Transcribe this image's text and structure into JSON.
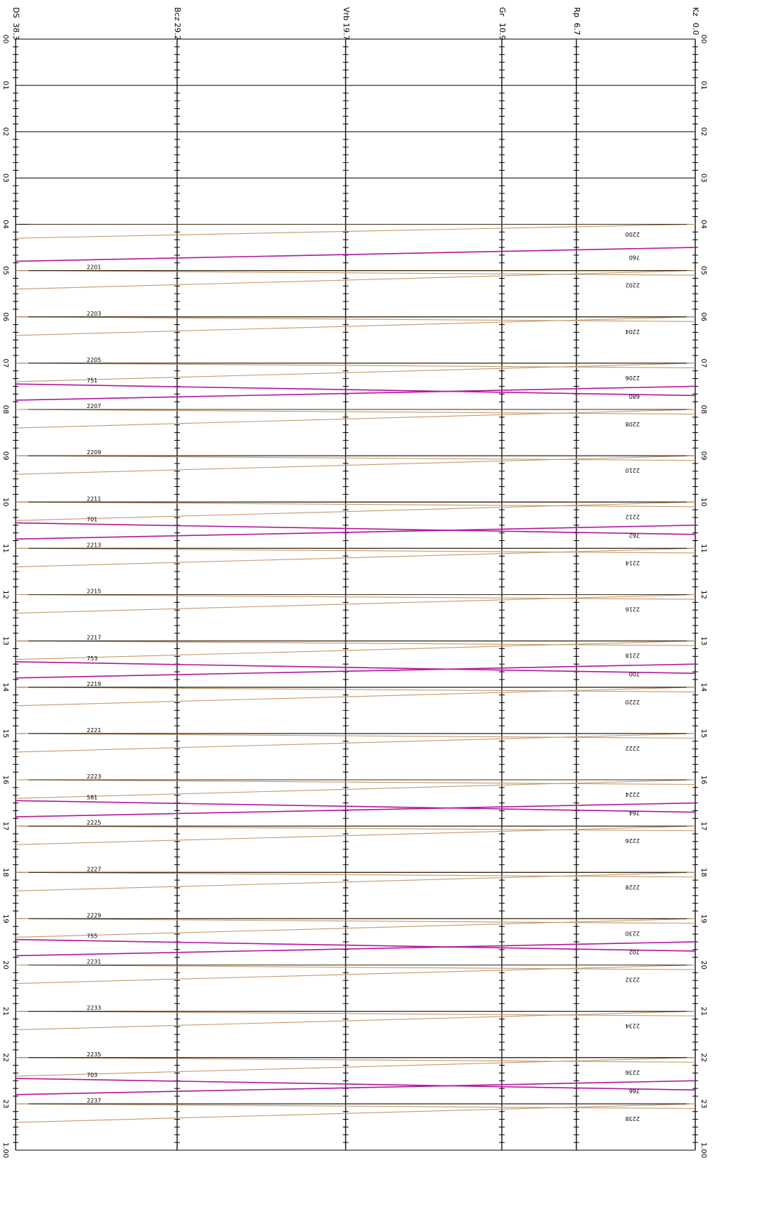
{
  "chart_data": {
    "type": "line",
    "title": "",
    "orientation": "rotated-90",
    "stations": [
      {
        "name": "DS",
        "distance": "38.3"
      },
      {
        "name": "Bcz",
        "distance": "29.2"
      },
      {
        "name": "Vrb",
        "distance": "19.7"
      },
      {
        "name": "Gr",
        "distance": "10.9"
      },
      {
        "name": "Rp",
        "distance": "6.7"
      },
      {
        "name": "Kz",
        "distance": "0.0"
      }
    ],
    "station_positions_km": [
      38.3,
      29.2,
      19.7,
      10.9,
      6.7,
      0.0
    ],
    "time_ticks": [
      "00",
      "01",
      "02",
      "03",
      "04",
      "05",
      "06",
      "07",
      "08",
      "09",
      "10",
      "11",
      "12",
      "13",
      "14",
      "15",
      "16",
      "17",
      "18",
      "19",
      "20",
      "21",
      "22",
      "23",
      "1.00"
    ],
    "time_range_hours": [
      0,
      24
    ],
    "grid": true,
    "series": [
      {
        "label": "2200",
        "color": "#c49a6c",
        "label_side": "right",
        "mark_hours": [
          4.0,
          4.3
        ],
        "start_hour": 4.4
      },
      {
        "label": "760",
        "color": "#b3169e",
        "label_side": "right",
        "mark_hours": [
          4.5,
          4.8
        ],
        "start_hour": 4.8
      },
      {
        "label": "2201",
        "color": "#c49a6c",
        "label_side": "left",
        "mark_hours": [
          5.0,
          5.1
        ],
        "start_hour": 5.0
      },
      {
        "label": "2202",
        "color": "#c49a6c",
        "label_side": "right",
        "mark_hours": [
          5.0,
          5.4
        ],
        "start_hour": 5.4
      },
      {
        "label": "2203",
        "color": "#c49a6c",
        "label_side": "left",
        "mark_hours": [
          6.0,
          6.1
        ],
        "start_hour": 6.0
      },
      {
        "label": "2204",
        "color": "#c49a6c",
        "label_side": "right",
        "mark_hours": [
          6.0,
          6.4
        ],
        "start_hour": 6.4
      },
      {
        "label": "2205",
        "color": "#c49a6c",
        "label_side": "left",
        "mark_hours": [
          7.0,
          7.1
        ],
        "start_hour": 7.0
      },
      {
        "label": "2206",
        "color": "#c49a6c",
        "label_side": "right",
        "mark_hours": [
          7.0,
          7.4
        ],
        "start_hour": 7.4
      },
      {
        "label": "751",
        "color": "#b3169e",
        "label_side": "left",
        "mark_hours": [
          7.45,
          7.7
        ],
        "start_hour": 7.45
      },
      {
        "label": "680",
        "color": "#b3169e",
        "label_side": "right",
        "mark_hours": [
          7.5,
          7.8
        ],
        "start_hour": 7.8
      },
      {
        "label": "2207",
        "color": "#c49a6c",
        "label_side": "left",
        "mark_hours": [
          8.0,
          8.1
        ],
        "start_hour": 8.0
      },
      {
        "label": "2208",
        "color": "#c49a6c",
        "label_side": "right",
        "mark_hours": [
          8.0,
          8.4
        ],
        "start_hour": 8.4
      },
      {
        "label": "2209",
        "color": "#c49a6c",
        "label_side": "left",
        "mark_hours": [
          9.0,
          9.1
        ],
        "start_hour": 9.0
      },
      {
        "label": "2210",
        "color": "#c49a6c",
        "label_side": "right",
        "mark_hours": [
          9.0,
          9.4
        ],
        "start_hour": 9.4
      },
      {
        "label": "2211",
        "color": "#c49a6c",
        "label_side": "left",
        "mark_hours": [
          10.0,
          10.1
        ],
        "start_hour": 10.0
      },
      {
        "label": "2212",
        "color": "#c49a6c",
        "label_side": "right",
        "mark_hours": [
          10.0,
          10.4
        ],
        "start_hour": 10.4
      },
      {
        "label": "701",
        "color": "#b3169e",
        "label_side": "left",
        "mark_hours": [
          10.45,
          10.7
        ],
        "start_hour": 10.45
      },
      {
        "label": "762",
        "color": "#b3169e",
        "label_side": "right",
        "mark_hours": [
          10.5,
          10.8
        ],
        "start_hour": 10.8
      },
      {
        "label": "2213",
        "color": "#c49a6c",
        "label_side": "left",
        "mark_hours": [
          11.0,
          11.1
        ],
        "start_hour": 11.0
      },
      {
        "label": "2214",
        "color": "#c49a6c",
        "label_side": "right",
        "mark_hours": [
          11.0,
          11.4
        ],
        "start_hour": 11.4
      },
      {
        "label": "2215",
        "color": "#c49a6c",
        "label_side": "left",
        "mark_hours": [
          12.0,
          12.1
        ],
        "start_hour": 12.0
      },
      {
        "label": "2216",
        "color": "#c49a6c",
        "label_side": "right",
        "mark_hours": [
          12.0,
          12.4
        ],
        "start_hour": 12.4
      },
      {
        "label": "2217",
        "color": "#c49a6c",
        "label_side": "left",
        "mark_hours": [
          13.0,
          13.1
        ],
        "start_hour": 13.0
      },
      {
        "label": "2218",
        "color": "#c49a6c",
        "label_side": "right",
        "mark_hours": [
          13.0,
          13.4
        ],
        "start_hour": 13.4
      },
      {
        "label": "753",
        "color": "#b3169e",
        "label_side": "left",
        "mark_hours": [
          13.45,
          13.7
        ],
        "start_hour": 13.45
      },
      {
        "label": "700",
        "color": "#b3169e",
        "label_side": "right",
        "mark_hours": [
          13.5,
          13.8
        ],
        "start_hour": 13.8
      },
      {
        "label": "2219",
        "color": "#c49a6c",
        "label_side": "left",
        "mark_hours": [
          14.0,
          14.1
        ],
        "start_hour": 14.0
      },
      {
        "label": "2220",
        "color": "#c49a6c",
        "label_side": "right",
        "mark_hours": [
          14.0,
          14.4
        ],
        "start_hour": 14.4
      },
      {
        "label": "2221",
        "color": "#c49a6c",
        "label_side": "left",
        "mark_hours": [
          15.0,
          15.1
        ],
        "start_hour": 15.0
      },
      {
        "label": "2222",
        "color": "#c49a6c",
        "label_side": "right",
        "mark_hours": [
          15.0,
          15.4
        ],
        "start_hour": 15.4
      },
      {
        "label": "2223",
        "color": "#c49a6c",
        "label_side": "left",
        "mark_hours": [
          16.0,
          16.1
        ],
        "start_hour": 16.0
      },
      {
        "label": "2224",
        "color": "#c49a6c",
        "label_side": "right",
        "mark_hours": [
          16.0,
          16.4
        ],
        "start_hour": 16.4
      },
      {
        "label": "581",
        "color": "#b3169e",
        "label_side": "left",
        "mark_hours": [
          16.45,
          16.7
        ],
        "start_hour": 16.45
      },
      {
        "label": "764",
        "color": "#b3169e",
        "label_side": "right",
        "mark_hours": [
          16.5,
          16.8
        ],
        "start_hour": 16.8
      },
      {
        "label": "2225",
        "color": "#c49a6c",
        "label_side": "left",
        "mark_hours": [
          17.0,
          17.1
        ],
        "start_hour": 17.0
      },
      {
        "label": "2226",
        "color": "#c49a6c",
        "label_side": "right",
        "mark_hours": [
          17.0,
          17.4
        ],
        "start_hour": 17.4
      },
      {
        "label": "2227",
        "color": "#c49a6c",
        "label_side": "left",
        "mark_hours": [
          18.0,
          18.1
        ],
        "start_hour": 18.0
      },
      {
        "label": "2228",
        "color": "#c49a6c",
        "label_side": "right",
        "mark_hours": [
          18.0,
          18.4
        ],
        "start_hour": 18.4
      },
      {
        "label": "2229",
        "color": "#c49a6c",
        "label_side": "left",
        "mark_hours": [
          19.0,
          19.1
        ],
        "start_hour": 19.0
      },
      {
        "label": "2230",
        "color": "#c49a6c",
        "label_side": "right",
        "mark_hours": [
          19.0,
          19.4
        ],
        "start_hour": 19.4
      },
      {
        "label": "755",
        "color": "#b3169e",
        "label_side": "left",
        "mark_hours": [
          19.45,
          19.7
        ],
        "start_hour": 19.45
      },
      {
        "label": "702",
        "color": "#b3169e",
        "label_side": "right",
        "mark_hours": [
          19.5,
          19.8
        ],
        "start_hour": 19.8
      },
      {
        "label": "2231",
        "color": "#c49a6c",
        "label_side": "left",
        "mark_hours": [
          20.0,
          20.1
        ],
        "start_hour": 20.0
      },
      {
        "label": "2232",
        "color": "#c49a6c",
        "label_side": "right",
        "mark_hours": [
          20.0,
          20.4
        ],
        "start_hour": 20.4
      },
      {
        "label": "2233",
        "color": "#c49a6c",
        "label_side": "left",
        "mark_hours": [
          21.0,
          21.1
        ],
        "start_hour": 21.0
      },
      {
        "label": "2234",
        "color": "#c49a6c",
        "label_side": "right",
        "mark_hours": [
          21.0,
          21.4
        ],
        "start_hour": 21.4
      },
      {
        "label": "2235",
        "color": "#c49a6c",
        "label_side": "left",
        "mark_hours": [
          22.0,
          22.1
        ],
        "start_hour": 22.0
      },
      {
        "label": "2236",
        "color": "#c49a6c",
        "label_side": "right",
        "mark_hours": [
          22.0,
          22.4
        ],
        "start_hour": 22.4
      },
      {
        "label": "703",
        "color": "#b3169e",
        "label_side": "left",
        "mark_hours": [
          22.45,
          22.7
        ],
        "start_hour": 22.45
      },
      {
        "label": "766",
        "color": "#b3169e",
        "label_side": "right",
        "mark_hours": [
          22.5,
          22.8
        ],
        "start_hour": 22.8
      },
      {
        "label": "2237",
        "color": "#c49a6c",
        "label_side": "left",
        "mark_hours": [
          23.0,
          23.1
        ],
        "start_hour": 23.0
      },
      {
        "label": "2238",
        "color": "#c49a6c",
        "label_side": "right",
        "mark_hours": [
          23.0,
          23.4
        ],
        "start_hour": 23.4
      }
    ]
  }
}
